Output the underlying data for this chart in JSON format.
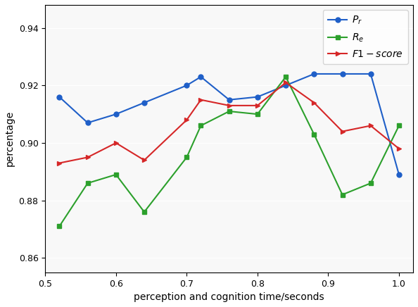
{
  "x": [
    0.52,
    0.56,
    0.6,
    0.64,
    0.7,
    0.72,
    0.76,
    0.8,
    0.84,
    0.88,
    0.92,
    0.96,
    1.0
  ],
  "Pr": [
    0.916,
    0.907,
    0.91,
    0.914,
    0.92,
    0.923,
    0.915,
    0.916,
    0.92,
    0.924,
    0.924,
    0.924,
    0.889
  ],
  "Re": [
    0.871,
    0.886,
    0.889,
    0.876,
    0.895,
    0.906,
    0.911,
    0.91,
    0.923,
    0.903,
    0.882,
    0.886,
    0.906
  ],
  "F1": [
    0.893,
    0.895,
    0.9,
    0.894,
    0.908,
    0.915,
    0.913,
    0.913,
    0.921,
    0.914,
    0.904,
    0.906,
    0.898
  ],
  "xlabel": "perception and cognition time/seconds",
  "ylabel": "percentage",
  "xlim": [
    0.5,
    1.02
  ],
  "ylim": [
    0.855,
    0.948
  ],
  "yticks": [
    0.86,
    0.88,
    0.9,
    0.92,
    0.94
  ],
  "xticks": [
    0.5,
    0.6,
    0.7,
    0.8,
    0.9,
    1.0
  ],
  "legend_labels": [
    "$P_r$",
    "$R_e$",
    "$F1-score$"
  ],
  "colors": {
    "Pr": "#1f5fc8",
    "Re": "#2ca02c",
    "F1": "#d62728"
  },
  "markers": {
    "Pr": "o",
    "Re": "s",
    "F1": ">"
  },
  "figsize": [
    5.94,
    4.36
  ],
  "dpi": 100
}
